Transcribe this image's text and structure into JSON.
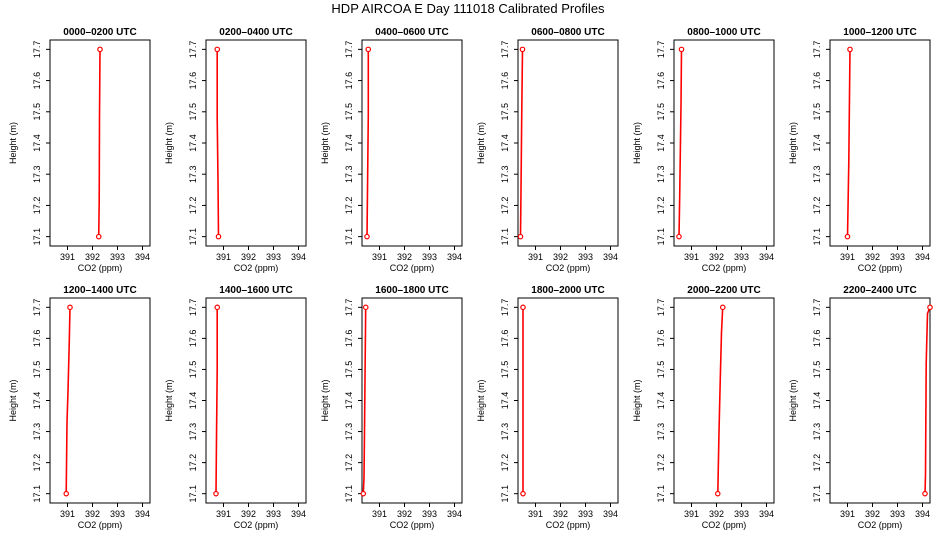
{
  "page": {
    "title": "HDP AIRCOA E  Day 111018  Calibrated Profiles"
  },
  "colors": {
    "profile_line": "#ff0000",
    "marker": "#ff0000",
    "axis": "#000000"
  },
  "chart_data": [
    {
      "type": "line",
      "title": "0000–0200 UTC",
      "xlabel": "CO2 (ppm)",
      "ylabel": "Height (m)",
      "xlim": [
        390.3,
        394.3
      ],
      "ylim": [
        17.07,
        17.73
      ],
      "xticks": [
        391,
        392,
        393,
        394
      ],
      "yticks": [
        17.1,
        17.2,
        17.3,
        17.4,
        17.5,
        17.6,
        17.7
      ],
      "series": [
        {
          "x": [
            392.25,
            392.27,
            392.28,
            392.3
          ],
          "y": [
            17.1,
            17.21,
            17.48,
            17.7
          ]
        }
      ]
    },
    {
      "type": "line",
      "title": "0200–0400 UTC",
      "xlabel": "CO2 (ppm)",
      "ylabel": "Height (m)",
      "xlim": [
        390.3,
        394.3
      ],
      "ylim": [
        17.07,
        17.73
      ],
      "xticks": [
        391,
        392,
        393,
        394
      ],
      "yticks": [
        17.1,
        17.2,
        17.3,
        17.4,
        17.5,
        17.6,
        17.7
      ],
      "series": [
        {
          "x": [
            390.8,
            390.78,
            390.75,
            390.75
          ],
          "y": [
            17.1,
            17.28,
            17.48,
            17.7
          ]
        }
      ]
    },
    {
      "type": "line",
      "title": "0400–0600 UTC",
      "xlabel": "CO2 (ppm)",
      "ylabel": "Height (m)",
      "xlim": [
        390.3,
        394.3
      ],
      "ylim": [
        17.07,
        17.73
      ],
      "xticks": [
        391,
        392,
        393,
        394
      ],
      "yticks": [
        17.1,
        17.2,
        17.3,
        17.4,
        17.5,
        17.6,
        17.7
      ],
      "series": [
        {
          "x": [
            390.5,
            390.52,
            390.55,
            390.55
          ],
          "y": [
            17.1,
            17.25,
            17.49,
            17.7
          ]
        }
      ]
    },
    {
      "type": "line",
      "title": "0600–0800 UTC",
      "xlabel": "CO2 (ppm)",
      "ylabel": "Height (m)",
      "xlim": [
        390.3,
        394.3
      ],
      "ylim": [
        17.07,
        17.73
      ],
      "xticks": [
        391,
        392,
        393,
        394
      ],
      "yticks": [
        17.1,
        17.2,
        17.3,
        17.4,
        17.5,
        17.6,
        17.7
      ],
      "series": [
        {
          "x": [
            390.4,
            390.42,
            390.45,
            390.48
          ],
          "y": [
            17.1,
            17.25,
            17.48,
            17.7
          ]
        }
      ]
    },
    {
      "type": "line",
      "title": "0800–1000 UTC",
      "xlabel": "CO2 (ppm)",
      "ylabel": "Height (m)",
      "xlim": [
        390.3,
        394.3
      ],
      "ylim": [
        17.07,
        17.73
      ],
      "xticks": [
        391,
        392,
        393,
        394
      ],
      "yticks": [
        17.1,
        17.2,
        17.3,
        17.4,
        17.5,
        17.6,
        17.7
      ],
      "series": [
        {
          "x": [
            390.5,
            390.53,
            390.56,
            390.58,
            390.6
          ],
          "y": [
            17.1,
            17.23,
            17.41,
            17.52,
            17.7
          ]
        }
      ]
    },
    {
      "type": "line",
      "title": "1000–1200 UTC",
      "xlabel": "CO2 (ppm)",
      "ylabel": "Height (m)",
      "xlim": [
        390.3,
        394.3
      ],
      "ylim": [
        17.07,
        17.73
      ],
      "xticks": [
        391,
        392,
        393,
        394
      ],
      "yticks": [
        17.1,
        17.2,
        17.3,
        17.4,
        17.5,
        17.6,
        17.7
      ],
      "series": [
        {
          "x": [
            391.0,
            391.02,
            391.05,
            391.1
          ],
          "y": [
            17.1,
            17.19,
            17.34,
            17.7
          ]
        }
      ]
    },
    {
      "type": "line",
      "title": "1200–1400 UTC",
      "xlabel": "CO2 (ppm)",
      "ylabel": "Height (m)",
      "xlim": [
        390.3,
        394.3
      ],
      "ylim": [
        17.07,
        17.73
      ],
      "xticks": [
        391,
        392,
        393,
        394
      ],
      "yticks": [
        17.1,
        17.2,
        17.3,
        17.4,
        17.5,
        17.6,
        17.7
      ],
      "series": [
        {
          "x": [
            390.95,
            390.98,
            391.02,
            391.07,
            391.1
          ],
          "y": [
            17.1,
            17.33,
            17.43,
            17.58,
            17.7
          ]
        }
      ]
    },
    {
      "type": "line",
      "title": "1400–1600 UTC",
      "xlabel": "CO2 (ppm)",
      "ylabel": "Height (m)",
      "xlim": [
        390.3,
        394.3
      ],
      "ylim": [
        17.07,
        17.73
      ],
      "xticks": [
        391,
        392,
        393,
        394
      ],
      "yticks": [
        17.1,
        17.2,
        17.3,
        17.4,
        17.5,
        17.6,
        17.7
      ],
      "series": [
        {
          "x": [
            390.7,
            390.72,
            390.75,
            390.75
          ],
          "y": [
            17.1,
            17.28,
            17.5,
            17.7
          ]
        }
      ]
    },
    {
      "type": "line",
      "title": "1600–1800 UTC",
      "xlabel": "CO2 (ppm)",
      "ylabel": "Height (m)",
      "xlim": [
        390.3,
        394.3
      ],
      "ylim": [
        17.07,
        17.73
      ],
      "xticks": [
        391,
        392,
        393,
        394
      ],
      "yticks": [
        17.1,
        17.2,
        17.3,
        17.4,
        17.5,
        17.6,
        17.7
      ],
      "series": [
        {
          "x": [
            390.35,
            390.38,
            390.4,
            390.45
          ],
          "y": [
            17.1,
            17.15,
            17.3,
            17.7
          ]
        }
      ]
    },
    {
      "type": "line",
      "title": "1800–2000 UTC",
      "xlabel": "CO2 (ppm)",
      "ylabel": "Height (m)",
      "xlim": [
        390.3,
        394.3
      ],
      "ylim": [
        17.07,
        17.73
      ],
      "xticks": [
        391,
        392,
        393,
        394
      ],
      "yticks": [
        17.1,
        17.2,
        17.3,
        17.4,
        17.5,
        17.6,
        17.7
      ],
      "series": [
        {
          "x": [
            390.5,
            390.5
          ],
          "y": [
            17.1,
            17.7
          ]
        }
      ]
    },
    {
      "type": "line",
      "title": "2000–2200 UTC",
      "xlabel": "CO2 (ppm)",
      "ylabel": "Height (m)",
      "xlim": [
        390.3,
        394.3
      ],
      "ylim": [
        17.07,
        17.73
      ],
      "xticks": [
        391,
        392,
        393,
        394
      ],
      "yticks": [
        17.1,
        17.2,
        17.3,
        17.4,
        17.5,
        17.6,
        17.7
      ],
      "series": [
        {
          "x": [
            392.05,
            392.1,
            392.15,
            392.2,
            392.25
          ],
          "y": [
            17.1,
            17.3,
            17.46,
            17.62,
            17.7
          ]
        }
      ]
    },
    {
      "type": "line",
      "title": "2200–2400 UTC",
      "xlabel": "CO2 (ppm)",
      "ylabel": "Height (m)",
      "xlim": [
        390.3,
        394.3
      ],
      "ylim": [
        17.07,
        17.73
      ],
      "xticks": [
        391,
        392,
        393,
        394
      ],
      "yticks": [
        17.1,
        17.2,
        17.3,
        17.4,
        17.5,
        17.6,
        17.7
      ],
      "series": [
        {
          "x": [
            394.1,
            394.12,
            394.15,
            394.2,
            394.3
          ],
          "y": [
            17.1,
            17.16,
            17.52,
            17.68,
            17.7
          ]
        }
      ]
    }
  ]
}
